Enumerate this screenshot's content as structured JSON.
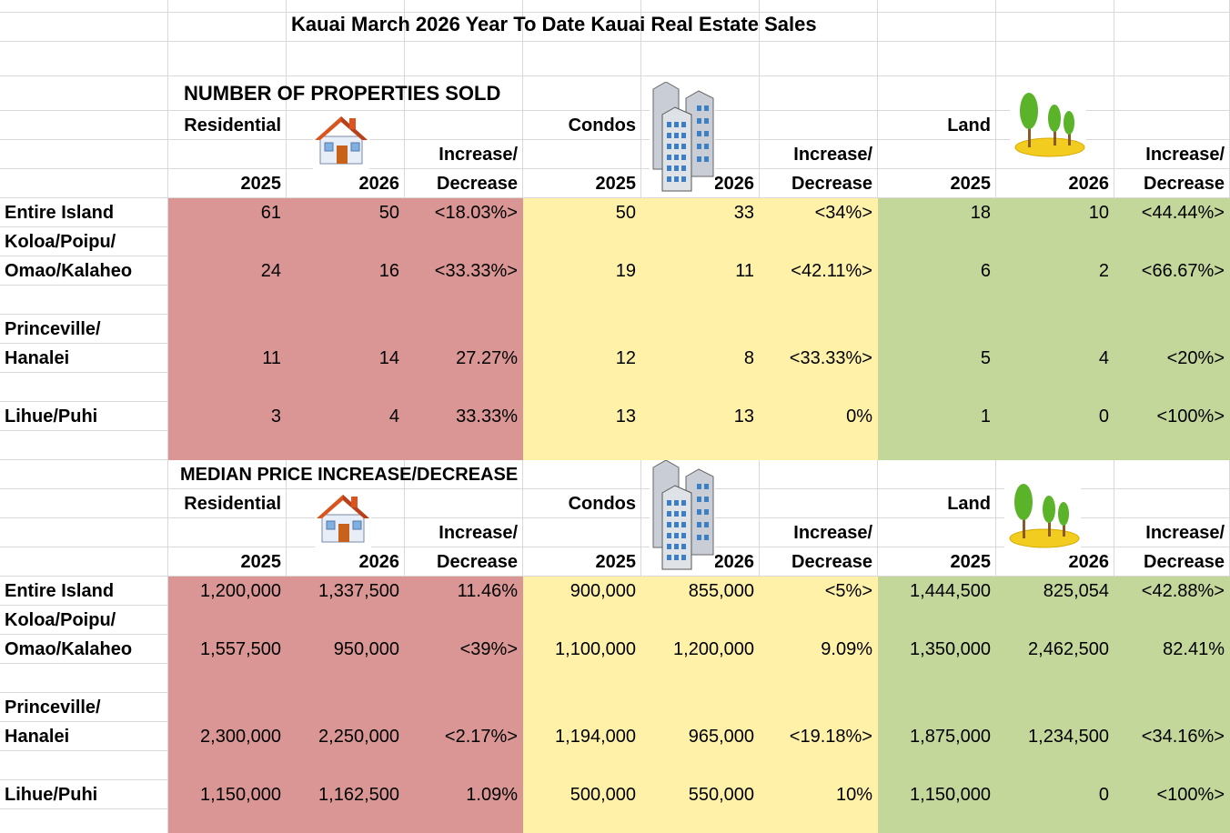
{
  "title": "Kauai March 2026 Year To Date Kauai Real Estate Sales",
  "sections": [
    {
      "heading": "NUMBER OF PROPERTIES SOLD",
      "groups": [
        "Residential",
        "Condos",
        "Land"
      ],
      "change_label_top": "Increase/",
      "change_label_bottom": "Decrease",
      "years": [
        "2025",
        "2026"
      ],
      "rows": [
        {
          "region": [
            "Entire Island"
          ],
          "values": [
            "61",
            "50",
            "<18.03%>",
            "50",
            "33",
            "<34%>",
            "18",
            "10",
            "<44.44%>"
          ]
        },
        {
          "region": [
            "Koloa/Poipu/",
            "Omao/Kalaheo"
          ],
          "values": [
            "24",
            "16",
            "<33.33%>",
            "19",
            "11",
            "<42.11%>",
            "6",
            "2",
            "<66.67%>"
          ]
        },
        {
          "region": [
            "Princeville/",
            "Hanalei"
          ],
          "values": [
            "11",
            "14",
            "27.27%",
            "12",
            "8",
            "<33.33%>",
            "5",
            "4",
            "<20%>"
          ]
        },
        {
          "region": [
            "Lihue/Puhi"
          ],
          "values": [
            "3",
            "4",
            "33.33%",
            "13",
            "13",
            "0%",
            "1",
            "0",
            "<100%>"
          ]
        }
      ]
    },
    {
      "heading": "MEDIAN PRICE INCREASE/DECREASE",
      "groups": [
        "Residential",
        "Condos",
        "Land"
      ],
      "change_label_top": "Increase/",
      "change_label_bottom": "Decrease",
      "years": [
        "2025",
        "2026"
      ],
      "rows": [
        {
          "region": [
            "Entire Island"
          ],
          "values": [
            "1,200,000",
            "1,337,500",
            "11.46%",
            "900,000",
            "855,000",
            "<5%>",
            "1,444,500",
            "825,054",
            "<42.88%>"
          ]
        },
        {
          "region": [
            "Koloa/Poipu/",
            "Omao/Kalaheo"
          ],
          "values": [
            "1,557,500",
            "950,000",
            "<39%>",
            "1,100,000",
            "1,200,000",
            "9.09%",
            "1,350,000",
            "2,462,500",
            "82.41%"
          ]
        },
        {
          "region": [
            "Princeville/",
            "Hanalei"
          ],
          "values": [
            "2,300,000",
            "2,250,000",
            "<2.17%>",
            "1,194,000",
            "965,000",
            "<19.18%>",
            "1,875,000",
            "1,234,500",
            "<34.16%>"
          ]
        },
        {
          "region": [
            "Lihue/Puhi"
          ],
          "values": [
            "1,150,000",
            "1,162,500",
            "1.09%",
            "500,000",
            "550,000",
            "10%",
            "1,150,000",
            "0",
            "<100%>"
          ]
        }
      ]
    }
  ],
  "icons": [
    "house-icon",
    "condo-buildings-icon",
    "trees-icon"
  ],
  "colors": {
    "residential": "#da9694",
    "condos": "#fff2a8",
    "land": "#c4d79b",
    "gridline": "#d9d9d9"
  }
}
